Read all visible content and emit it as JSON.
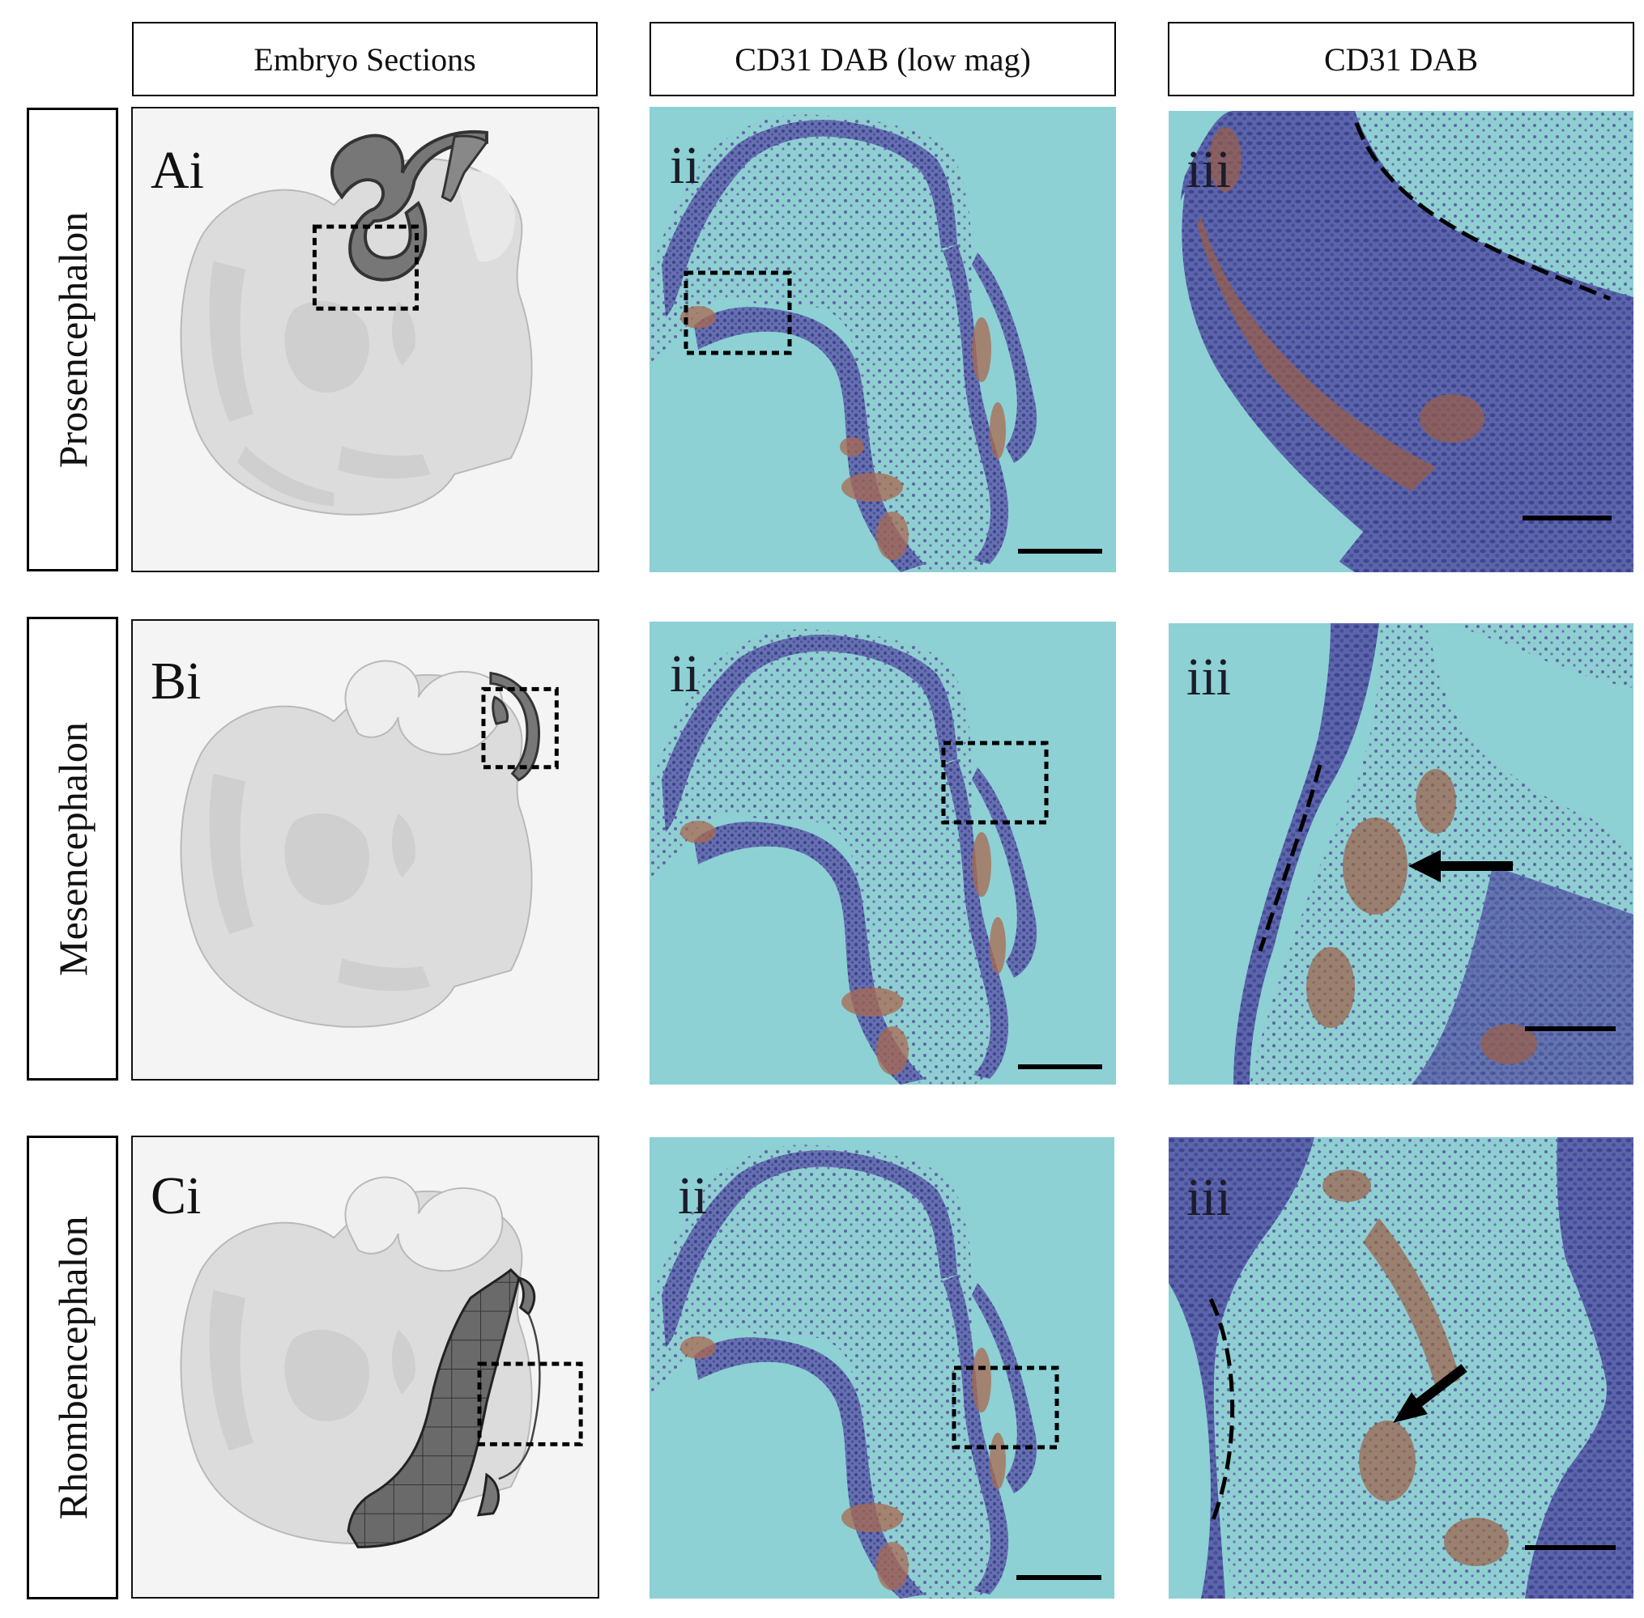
{
  "columns": [
    {
      "label": "Embryo Sections"
    },
    {
      "label": "CD31 DAB (low mag)"
    },
    {
      "label": "CD31 DAB"
    }
  ],
  "rows": [
    {
      "label": "Prosencephalon",
      "panels": [
        "Ai",
        "ii",
        "iii"
      ]
    },
    {
      "label": "Mesencephalon",
      "panels": [
        "Bi",
        "ii",
        "iii"
      ]
    },
    {
      "label": "Rhombencephalon",
      "panels": [
        "Ci",
        "ii",
        "iii"
      ]
    }
  ],
  "colors": {
    "background": "#8dd1d4",
    "tissue_blue": "#5a62a8",
    "dab_brown": "#9a5a40",
    "embryo_gray": "#d8d8d8",
    "highlight": "#707070"
  }
}
